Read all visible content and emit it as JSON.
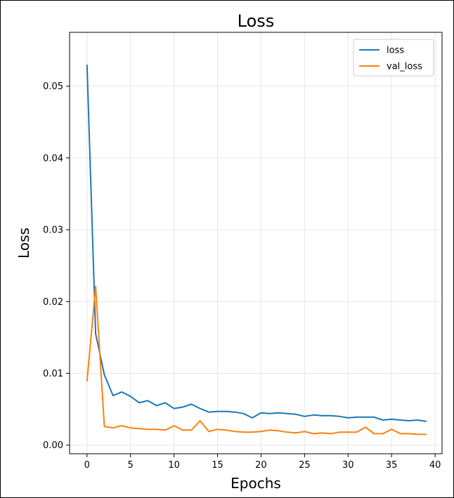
{
  "chart_data": {
    "type": "line",
    "title": "Loss",
    "xlabel": "Epochs",
    "ylabel": "Loss",
    "xlim": [
      -2,
      40.8
    ],
    "ylim": [
      -0.0012,
      0.0575
    ],
    "xticks": [
      0,
      5,
      10,
      15,
      20,
      25,
      30,
      35,
      40
    ],
    "yticks": [
      0.0,
      0.01,
      0.02,
      0.03,
      0.04,
      0.05
    ],
    "ytick_labels": [
      "0.00",
      "0.01",
      "0.02",
      "0.03",
      "0.04",
      "0.05"
    ],
    "grid": true,
    "legend_position": "top-right",
    "x": [
      0,
      1,
      2,
      3,
      4,
      5,
      6,
      7,
      8,
      9,
      10,
      11,
      12,
      13,
      14,
      15,
      16,
      17,
      18,
      19,
      20,
      21,
      22,
      23,
      24,
      25,
      26,
      27,
      28,
      29,
      30,
      31,
      32,
      33,
      34,
      35,
      36,
      37,
      38,
      39
    ],
    "series": [
      {
        "name": "loss",
        "color": "#1f77b4",
        "values": [
          0.053,
          0.0155,
          0.0098,
          0.0069,
          0.0074,
          0.0068,
          0.0059,
          0.0062,
          0.0055,
          0.0059,
          0.0051,
          0.0053,
          0.0057,
          0.0051,
          0.0046,
          0.0047,
          0.0047,
          0.0046,
          0.0044,
          0.0038,
          0.0045,
          0.0044,
          0.0045,
          0.0044,
          0.0043,
          0.004,
          0.0042,
          0.0041,
          0.0041,
          0.004,
          0.0038,
          0.0039,
          0.0039,
          0.0039,
          0.0035,
          0.0036,
          0.0035,
          0.0034,
          0.0035,
          0.0033
        ]
      },
      {
        "name": "val_loss",
        "color": "#ff7f0e",
        "values": [
          0.0089,
          0.0221,
          0.0026,
          0.0024,
          0.0027,
          0.0024,
          0.0023,
          0.0022,
          0.0022,
          0.0021,
          0.0027,
          0.0021,
          0.0021,
          0.0034,
          0.0019,
          0.0022,
          0.0021,
          0.0019,
          0.0018,
          0.0018,
          0.0019,
          0.0021,
          0.002,
          0.0018,
          0.0017,
          0.0019,
          0.0016,
          0.0017,
          0.0016,
          0.0018,
          0.0018,
          0.0018,
          0.0025,
          0.0016,
          0.0016,
          0.0022,
          0.0016,
          0.0016,
          0.0015,
          0.0015
        ]
      }
    ]
  }
}
